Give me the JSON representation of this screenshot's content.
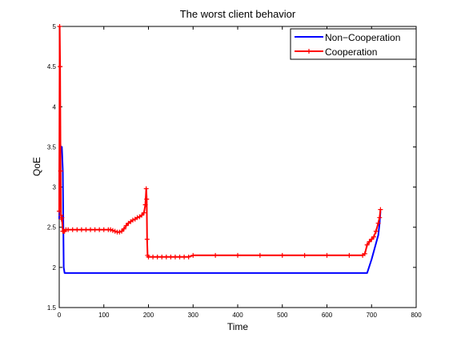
{
  "chart_data": {
    "type": "line",
    "title": "The worst client behavior",
    "xlabel": "Time",
    "ylabel": "QoE",
    "xlim": [
      0,
      800
    ],
    "ylim": [
      1.5,
      5
    ],
    "xticks": [
      0,
      100,
      200,
      300,
      400,
      500,
      600,
      700,
      800
    ],
    "yticks": [
      1.5,
      2,
      2.5,
      3,
      3.5,
      4,
      4.5,
      5
    ],
    "grid": false,
    "legend_position": "top-right",
    "series": [
      {
        "name": "Non−Cooperation",
        "color": "#0000ff",
        "marker": "none",
        "x": [
          0,
          1,
          3,
          6,
          8,
          10,
          12,
          200,
          400,
          600,
          690,
          700,
          710,
          715,
          718,
          720
        ],
        "y": [
          2.6,
          3.7,
          3.5,
          3.5,
          3.2,
          2.0,
          1.93,
          1.93,
          1.93,
          1.93,
          1.93,
          2.1,
          2.3,
          2.4,
          2.55,
          2.7
        ]
      },
      {
        "name": "Cooperation",
        "color": "#ff0000",
        "marker": "+",
        "x": [
          0,
          1,
          2,
          3,
          4,
          5,
          6,
          8,
          10,
          12,
          15,
          20,
          30,
          40,
          50,
          60,
          70,
          80,
          90,
          100,
          110,
          115,
          120,
          125,
          130,
          135,
          140,
          145,
          150,
          155,
          160,
          165,
          170,
          175,
          180,
          185,
          190,
          193,
          195,
          196,
          197,
          198,
          200,
          210,
          220,
          230,
          240,
          250,
          260,
          270,
          280,
          290,
          300,
          350,
          400,
          450,
          500,
          550,
          600,
          650,
          680,
          685,
          690,
          695,
          700,
          705,
          710,
          715,
          718,
          720
        ],
        "y": [
          2.7,
          5.0,
          4.5,
          3.2,
          2.65,
          2.6,
          2.62,
          2.45,
          2.45,
          2.45,
          2.47,
          2.47,
          2.47,
          2.47,
          2.47,
          2.47,
          2.47,
          2.47,
          2.47,
          2.47,
          2.47,
          2.47,
          2.46,
          2.45,
          2.44,
          2.44,
          2.45,
          2.48,
          2.52,
          2.55,
          2.57,
          2.59,
          2.6,
          2.62,
          2.63,
          2.65,
          2.68,
          2.78,
          2.98,
          2.85,
          2.35,
          2.15,
          2.13,
          2.13,
          2.13,
          2.13,
          2.13,
          2.13,
          2.13,
          2.13,
          2.13,
          2.13,
          2.15,
          2.15,
          2.15,
          2.15,
          2.15,
          2.15,
          2.15,
          2.15,
          2.15,
          2.17,
          2.28,
          2.32,
          2.35,
          2.38,
          2.45,
          2.55,
          2.62,
          2.72
        ]
      }
    ]
  }
}
